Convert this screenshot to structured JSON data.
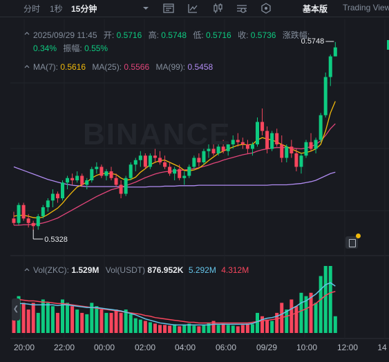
{
  "toolbar": {
    "intervals": [
      "分时",
      "1秒",
      "15分钟"
    ],
    "active_interval": "15分钟",
    "icons": [
      "chevron-down-icon",
      "indicator-settings-icon",
      "drawing-tools-icon",
      "candle-type-icon",
      "settings-icon",
      "hexagon-icon"
    ],
    "basic_label": "基本版",
    "tradingview_label": "Trading View"
  },
  "ohlc": {
    "datetime": "2025/09/29 11:45",
    "open_label": "开:",
    "open": "0.5716",
    "high_label": "高:",
    "high": "0.5748",
    "low_label": "低:",
    "low": "0.5716",
    "close_label": "收:",
    "close": "0.5736",
    "change_label": "涨跌幅:",
    "change": "0.34%",
    "amplitude_label": "振幅:",
    "amplitude": "0.55%"
  },
  "ma": {
    "ma7_label": "MA(7):",
    "ma7": "0.5616",
    "ma25_label": "MA(25):",
    "ma25": "0.5566",
    "ma99_label": "MA(99):",
    "ma99": "0.5458"
  },
  "volume": {
    "label": "Vol(ZKC):",
    "value": "1.529M",
    "usdt_label": "Vol(USDT)",
    "usdt_value": "876.952K",
    "ma_a": "5.292M",
    "ma_b": "4.312M"
  },
  "price_marks": {
    "low_mark": "0.5328",
    "high_mark": "0.5748"
  },
  "watermark": "BINANCE",
  "colors": {
    "up": "#0ecb81",
    "down": "#f6465d",
    "ma7": "#f0b90b",
    "ma25": "#e2457a",
    "ma99": "#b18cf2",
    "vol_ma_a": "#64c4e8",
    "vol_ma_b": "#f6465d"
  },
  "chart_data": {
    "type": "candlestick",
    "x_ticks": [
      "20:00",
      "22:00",
      "00:00",
      "02:00",
      "04:00",
      "06:00",
      "09/29",
      "10:00",
      "12:00",
      "14"
    ],
    "price_range": [
      0.528,
      0.578
    ],
    "candles": [
      [
        0.5355,
        0.537,
        0.534,
        0.5345
      ],
      [
        0.5345,
        0.539,
        0.534,
        0.5385
      ],
      [
        0.5385,
        0.539,
        0.535,
        0.5355
      ],
      [
        0.5355,
        0.5365,
        0.5335,
        0.5345
      ],
      [
        0.5345,
        0.535,
        0.5328,
        0.5338
      ],
      [
        0.5338,
        0.5365,
        0.533,
        0.536
      ],
      [
        0.536,
        0.5385,
        0.5355,
        0.538
      ],
      [
        0.538,
        0.54,
        0.537,
        0.5395
      ],
      [
        0.5395,
        0.542,
        0.538,
        0.541
      ],
      [
        0.541,
        0.5415,
        0.539,
        0.54
      ],
      [
        0.54,
        0.544,
        0.5395,
        0.5435
      ],
      [
        0.5435,
        0.545,
        0.542,
        0.5445
      ],
      [
        0.5445,
        0.5455,
        0.543,
        0.544
      ],
      [
        0.544,
        0.546,
        0.5435,
        0.545
      ],
      [
        0.545,
        0.5455,
        0.5425,
        0.543
      ],
      [
        0.543,
        0.5445,
        0.542,
        0.544
      ],
      [
        0.544,
        0.547,
        0.5435,
        0.5465
      ],
      [
        0.5465,
        0.548,
        0.5455,
        0.547
      ],
      [
        0.547,
        0.5475,
        0.5445,
        0.545
      ],
      [
        0.545,
        0.5465,
        0.544,
        0.546
      ],
      [
        0.546,
        0.547,
        0.544,
        0.5445
      ],
      [
        0.5445,
        0.5455,
        0.5425,
        0.543
      ],
      [
        0.543,
        0.544,
        0.54,
        0.541
      ],
      [
        0.541,
        0.545,
        0.5405,
        0.5445
      ],
      [
        0.5445,
        0.548,
        0.544,
        0.5475
      ],
      [
        0.5475,
        0.549,
        0.546,
        0.5485
      ],
      [
        0.5485,
        0.5505,
        0.547,
        0.5495
      ],
      [
        0.5495,
        0.55,
        0.5465,
        0.547
      ],
      [
        0.547,
        0.55,
        0.5465,
        0.5495
      ],
      [
        0.5495,
        0.551,
        0.548,
        0.549
      ],
      [
        0.549,
        0.5505,
        0.5475,
        0.548
      ],
      [
        0.548,
        0.5495,
        0.5465,
        0.547
      ],
      [
        0.547,
        0.548,
        0.545,
        0.5455
      ],
      [
        0.5455,
        0.547,
        0.544,
        0.5465
      ],
      [
        0.5465,
        0.5475,
        0.544,
        0.5445
      ],
      [
        0.5445,
        0.546,
        0.543,
        0.545
      ],
      [
        0.545,
        0.5475,
        0.5445,
        0.547
      ],
      [
        0.547,
        0.5495,
        0.5465,
        0.549
      ],
      [
        0.549,
        0.55,
        0.547,
        0.548
      ],
      [
        0.548,
        0.551,
        0.5475,
        0.5505
      ],
      [
        0.5505,
        0.552,
        0.549,
        0.551
      ],
      [
        0.551,
        0.5525,
        0.5495,
        0.55
      ],
      [
        0.55,
        0.552,
        0.5495,
        0.5515
      ],
      [
        0.5515,
        0.553,
        0.55,
        0.5505
      ],
      [
        0.5505,
        0.5525,
        0.5495,
        0.552
      ],
      [
        0.552,
        0.554,
        0.551,
        0.553
      ],
      [
        0.553,
        0.5545,
        0.5515,
        0.5525
      ],
      [
        0.5525,
        0.5535,
        0.551,
        0.552
      ],
      [
        0.552,
        0.553,
        0.55,
        0.551
      ],
      [
        0.551,
        0.5525,
        0.5495,
        0.552
      ],
      [
        0.552,
        0.558,
        0.5515,
        0.557
      ],
      [
        0.557,
        0.56,
        0.554,
        0.555
      ],
      [
        0.555,
        0.556,
        0.55,
        0.551
      ],
      [
        0.551,
        0.555,
        0.5505,
        0.5545
      ],
      [
        0.5545,
        0.5555,
        0.5515,
        0.552
      ],
      [
        0.552,
        0.554,
        0.548,
        0.549
      ],
      [
        0.549,
        0.552,
        0.548,
        0.5515
      ],
      [
        0.5515,
        0.553,
        0.549,
        0.55
      ],
      [
        0.55,
        0.551,
        0.546,
        0.547
      ],
      [
        0.547,
        0.55,
        0.5455,
        0.5495
      ],
      [
        0.5495,
        0.553,
        0.549,
        0.5525
      ],
      [
        0.5525,
        0.5545,
        0.5505,
        0.551
      ],
      [
        0.551,
        0.5535,
        0.55,
        0.553
      ],
      [
        0.553,
        0.559,
        0.5525,
        0.5585
      ],
      [
        0.5585,
        0.568,
        0.558,
        0.567
      ],
      [
        0.567,
        0.572,
        0.565,
        0.5716
      ],
      [
        0.5716,
        0.5748,
        0.5716,
        0.5736
      ]
    ],
    "ma7": [
      0.536,
      0.5362,
      0.5362,
      0.536,
      0.5357,
      0.5356,
      0.5358,
      0.5364,
      0.5371,
      0.5378,
      0.5389,
      0.5402,
      0.5414,
      0.5425,
      0.543,
      0.5436,
      0.5445,
      0.5451,
      0.5455,
      0.5455,
      0.5455,
      0.5453,
      0.5445,
      0.544,
      0.5442,
      0.5447,
      0.5458,
      0.5466,
      0.5475,
      0.548,
      0.5484,
      0.5485,
      0.548,
      0.5475,
      0.547,
      0.5462,
      0.5461,
      0.5463,
      0.5467,
      0.5475,
      0.5484,
      0.5492,
      0.55,
      0.5505,
      0.551,
      0.5514,
      0.5518,
      0.552,
      0.5519,
      0.552,
      0.553,
      0.5535,
      0.5532,
      0.553,
      0.5525,
      0.552,
      0.5515,
      0.551,
      0.5505,
      0.55,
      0.5502,
      0.5505,
      0.551,
      0.552,
      0.555,
      0.559,
      0.5616
    ],
    "ma25": [
      0.534,
      0.534,
      0.5341,
      0.5341,
      0.5342,
      0.5343,
      0.5345,
      0.5348,
      0.5352,
      0.5356,
      0.5362,
      0.5368,
      0.5374,
      0.538,
      0.5386,
      0.5392,
      0.5398,
      0.5404,
      0.5409,
      0.5414,
      0.5419,
      0.5422,
      0.5425,
      0.5428,
      0.5432,
      0.5436,
      0.5441,
      0.5446,
      0.545,
      0.5454,
      0.5457,
      0.5459,
      0.546,
      0.5461,
      0.5462,
      0.5463,
      0.5464,
      0.5466,
      0.5468,
      0.5471,
      0.5474,
      0.5478,
      0.5481,
      0.5485,
      0.5488,
      0.5491,
      0.5494,
      0.5497,
      0.5499,
      0.5501,
      0.5505,
      0.5508,
      0.551,
      0.5512,
      0.5513,
      0.5513,
      0.5513,
      0.5512,
      0.5511,
      0.551,
      0.5512,
      0.5515,
      0.552,
      0.5528,
      0.554,
      0.5555,
      0.5566
    ],
    "ma99": [
      0.547,
      0.5466,
      0.5462,
      0.5458,
      0.5454,
      0.545,
      0.5446,
      0.5442,
      0.5439,
      0.5436,
      0.5433,
      0.5431,
      0.5429,
      0.5428,
      0.5427,
      0.5426,
      0.5426,
      0.5426,
      0.5426,
      0.5426,
      0.5426,
      0.5426,
      0.5426,
      0.5425,
      0.5425,
      0.5425,
      0.5425,
      0.5425,
      0.5426,
      0.5426,
      0.5426,
      0.5427,
      0.5427,
      0.5427,
      0.5428,
      0.5428,
      0.5428,
      0.5428,
      0.5429,
      0.5429,
      0.5429,
      0.5429,
      0.5429,
      0.5429,
      0.5429,
      0.5429,
      0.5429,
      0.5429,
      0.5429,
      0.5429,
      0.5429,
      0.5429,
      0.5429,
      0.543,
      0.543,
      0.543,
      0.543,
      0.5431,
      0.5432,
      0.5433,
      0.5435,
      0.5437,
      0.544,
      0.5445,
      0.545,
      0.5455,
      0.5458
    ],
    "volumes": [
      0.35,
      0.55,
      0.45,
      0.35,
      0.45,
      0.3,
      0.5,
      0.45,
      0.4,
      0.3,
      0.5,
      0.45,
      0.4,
      0.35,
      0.3,
      0.28,
      0.45,
      0.4,
      0.35,
      0.3,
      0.3,
      0.35,
      0.3,
      0.35,
      0.28,
      0.22,
      0.2,
      0.18,
      0.16,
      0.14,
      0.12,
      0.12,
      0.11,
      0.13,
      0.1,
      0.12,
      0.14,
      0.11,
      0.1,
      0.12,
      0.15,
      0.18,
      0.12,
      0.14,
      0.12,
      0.11,
      0.1,
      0.12,
      0.14,
      0.13,
      0.3,
      0.25,
      0.2,
      0.18,
      0.3,
      0.45,
      0.35,
      0.5,
      0.4,
      0.6,
      0.55,
      0.6,
      0.45,
      0.85,
      1.0,
      1.0,
      0.25
    ],
    "vol_ma_a": [
      0.45,
      0.44,
      0.44,
      0.43,
      0.42,
      0.42,
      0.42,
      0.42,
      0.42,
      0.41,
      0.42,
      0.42,
      0.41,
      0.4,
      0.39,
      0.38,
      0.38,
      0.38,
      0.37,
      0.36,
      0.35,
      0.34,
      0.33,
      0.31,
      0.29,
      0.27,
      0.24,
      0.21,
      0.19,
      0.17,
      0.15,
      0.14,
      0.13,
      0.12,
      0.12,
      0.12,
      0.12,
      0.12,
      0.12,
      0.12,
      0.12,
      0.13,
      0.13,
      0.13,
      0.13,
      0.13,
      0.13,
      0.13,
      0.13,
      0.14,
      0.17,
      0.2,
      0.22,
      0.23,
      0.25,
      0.28,
      0.32,
      0.36,
      0.4,
      0.45,
      0.48,
      0.53,
      0.58,
      0.65,
      0.72,
      0.75,
      0.7
    ],
    "vol_ma_b": [
      0.5,
      0.5,
      0.49,
      0.48,
      0.48,
      0.47,
      0.46,
      0.46,
      0.45,
      0.44,
      0.44,
      0.43,
      0.42,
      0.41,
      0.4,
      0.39,
      0.38,
      0.37,
      0.36,
      0.35,
      0.34,
      0.33,
      0.32,
      0.31,
      0.3,
      0.29,
      0.28,
      0.26,
      0.25,
      0.23,
      0.22,
      0.21,
      0.2,
      0.19,
      0.18,
      0.17,
      0.16,
      0.16,
      0.15,
      0.15,
      0.15,
      0.15,
      0.15,
      0.15,
      0.15,
      0.15,
      0.15,
      0.15,
      0.15,
      0.16,
      0.17,
      0.18,
      0.19,
      0.2,
      0.21,
      0.23,
      0.25,
      0.27,
      0.3,
      0.33,
      0.36,
      0.4,
      0.44,
      0.5,
      0.56,
      0.6,
      0.62
    ]
  }
}
